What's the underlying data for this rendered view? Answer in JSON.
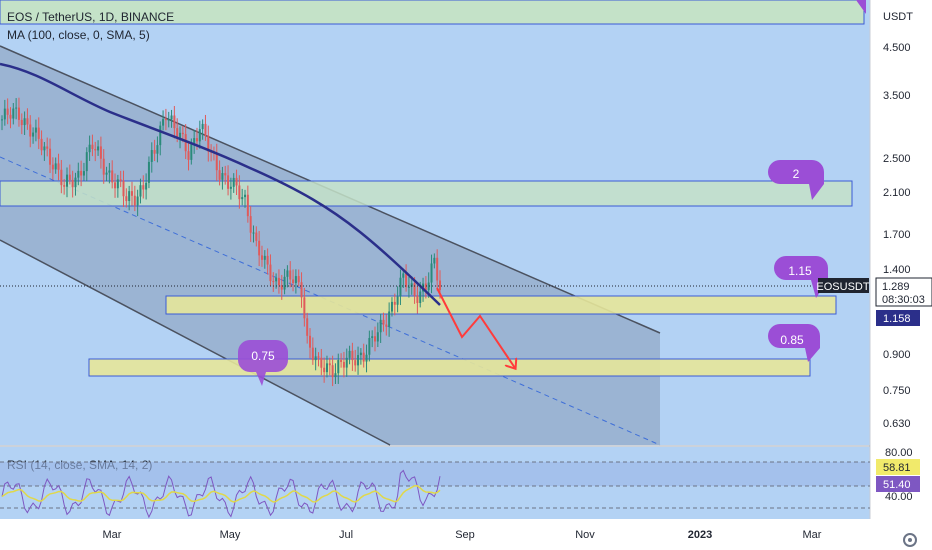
{
  "header": {
    "symbol_line": "EOS / TetherUS, 1D, BINANCE",
    "ma_line": "MA (100, close, 0, SMA, 5)",
    "rsi_line": "RSI (14, close, SMA, 14, 2)",
    "currency": "USDT"
  },
  "colors": {
    "background": "#b3d2f4",
    "candle_up": "#2a8a7a",
    "candle_down": "#e05a5a",
    "ma_line": "#2b2f8a",
    "channel_fill": "#8fa5c2",
    "zone_yellow": "#e6e59a",
    "zone_green": "#c4e2c8",
    "callout_purple": "#9b4ed6",
    "arrow_red": "#ff3b3b",
    "rsi_line": "#7e57c2",
    "rsi_ma": "#e0d84a"
  },
  "price_axis": {
    "ticks": [
      "4.500",
      "3.500",
      "2.500",
      "2.100",
      "1.700",
      "1.400",
      "0.900",
      "0.750",
      "0.630"
    ],
    "current_symbol": "EOSUSDT",
    "current_price": "1.289",
    "countdown": "08:30:03",
    "ma_value": "1.158"
  },
  "rsi_axis": {
    "ticks": [
      "80.00",
      "40.00"
    ],
    "rsi_value": "58.81",
    "rsi_ma_value": "51.40"
  },
  "time_axis": [
    "Mar",
    "May",
    "Jul",
    "Sep",
    "Nov",
    "2023",
    "Mar"
  ],
  "annotations": {
    "callouts": [
      "2",
      "1.15",
      "0.85",
      "0.75"
    ]
  },
  "chart_data": {
    "type": "candlestick",
    "symbol": "EOS / TetherUS",
    "interval": "1D",
    "exchange": "BINANCE",
    "scale": "log",
    "y_ticks": [
      4.5,
      3.5,
      2.5,
      2.1,
      1.7,
      1.4,
      0.9,
      0.75,
      0.63
    ],
    "x_ticks": [
      "Mar",
      "May",
      "Jul",
      "Sep",
      "Nov",
      "2023",
      "Mar"
    ],
    "close_path": [
      [
        0,
        2.85
      ],
      [
        6,
        2.95
      ],
      [
        12,
        2.6
      ],
      [
        18,
        2.35
      ],
      [
        22,
        2.05
      ],
      [
        27,
        2.2
      ],
      [
        32,
        2.5
      ],
      [
        38,
        2.2
      ],
      [
        44,
        1.95
      ],
      [
        50,
        2.05
      ],
      [
        54,
        2.45
      ],
      [
        58,
        3.0
      ],
      [
        61,
        2.7
      ],
      [
        66,
        2.45
      ],
      [
        70,
        2.75
      ],
      [
        74,
        2.4
      ],
      [
        80,
        2.1
      ],
      [
        86,
        1.95
      ],
      [
        90,
        1.55
      ],
      [
        93,
        1.42
      ],
      [
        97,
        1.32
      ],
      [
        102,
        1.33
      ],
      [
        106,
        1.28
      ],
      [
        108,
        1.0
      ],
      [
        112,
        0.87
      ],
      [
        118,
        0.88
      ],
      [
        123,
        0.9
      ],
      [
        128,
        0.94
      ],
      [
        133,
        1.02
      ],
      [
        138,
        1.18
      ],
      [
        142,
        1.32
      ],
      [
        146,
        1.25
      ],
      [
        150,
        1.28
      ],
      [
        153,
        1.42
      ],
      [
        155,
        1.289
      ]
    ],
    "indicators": {
      "ma_100_last": 1.158,
      "rsi_14_last": 58.81,
      "rsi_ma_last": 51.4
    },
    "levels": [
      2,
      1.15,
      0.85,
      0.75
    ],
    "last_price": 1.289
  }
}
